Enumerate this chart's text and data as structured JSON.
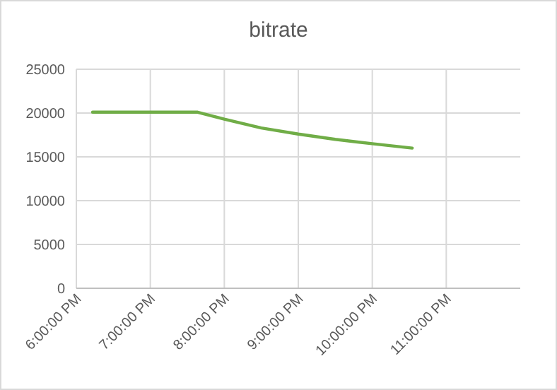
{
  "chart_data": {
    "type": "line",
    "title": "bitrate",
    "x": [
      18.22,
      19.64,
      20.0,
      20.5,
      21.0,
      21.5,
      22.0,
      22.54
    ],
    "series": [
      {
        "color": "#70ad47",
        "values": [
          20100,
          20100,
          19300,
          18300,
          17600,
          17000,
          16500,
          16000
        ]
      }
    ],
    "xlim": [
      18,
      24
    ],
    "xticks": [
      {
        "value": 18,
        "label": "6:00:00 PM"
      },
      {
        "value": 19,
        "label": "7:00:00 PM"
      },
      {
        "value": 20,
        "label": "8:00:00 PM"
      },
      {
        "value": 21,
        "label": "9:00:00 PM"
      },
      {
        "value": 22,
        "label": "10:00:00 PM"
      },
      {
        "value": 23,
        "label": "11:00:00 PM"
      }
    ],
    "ylim": [
      0,
      25000
    ],
    "yticks": [
      0,
      5000,
      10000,
      15000,
      20000,
      25000
    ],
    "grid": true,
    "marker": "none",
    "line_style": "solid"
  }
}
